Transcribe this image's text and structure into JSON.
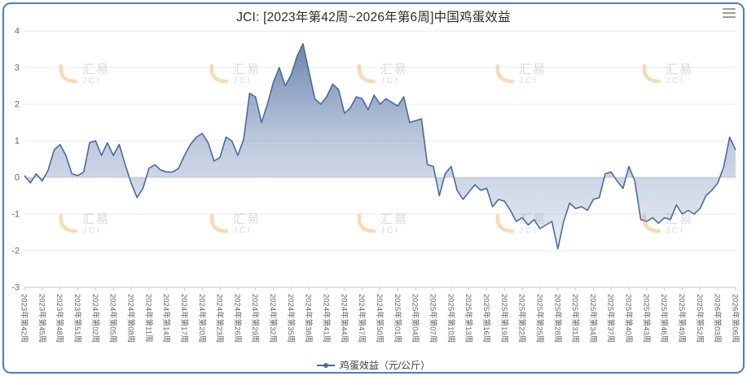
{
  "title": "JCI: [2023年第42周~2026年第6周]中国鸡蛋效益",
  "legend": {
    "series_label": "鸡蛋效益（元/公斤）"
  },
  "watermark": {
    "logo_text": "汇易",
    "sub_text": "JCI",
    "accent_color": "#f08c1e",
    "text_color": "#858b94"
  },
  "colors": {
    "line": "#4b6a9e",
    "border": "#4a7fc0",
    "grid": "#e6e8ec",
    "zero_line": "#cdd2d9",
    "axis_label": "#666666",
    "area_top": "#49699c",
    "area_bottom": "#dfe5ee"
  },
  "chart_data": {
    "type": "area",
    "title": "JCI: [2023年第42周~2026年第6周]中国鸡蛋效益",
    "ylabel": "",
    "xlabel": "",
    "ylim": [
      -3,
      4
    ],
    "y_ticks": [
      4,
      3,
      2,
      1,
      0,
      -1,
      -2,
      -3
    ],
    "grid": true,
    "legend_position": "bottom",
    "points_per_tick": 3,
    "x_tick_labels": [
      "2023年第42周",
      "2023年第45周",
      "2023年第48周",
      "2023年第51周",
      "2024年第02周",
      "2024年第05周",
      "2024年第08周",
      "2024年第11周",
      "2024年第14周",
      "2024年第17周",
      "2024年第20周",
      "2024年第23周",
      "2024年第26周",
      "2024年第29周",
      "2024年第32周",
      "2024年第35周",
      "2024年第38周",
      "2024年第41周",
      "2024年第44周",
      "2024年第47周",
      "2024年第50周",
      "2025年第01周",
      "2025年第04周",
      "2025年第07周",
      "2025年第10周",
      "2025年第13周",
      "2025年第16周",
      "2025年第19周",
      "2025年第22周",
      "2025年第25周",
      "2025年第28周",
      "2025年第31周",
      "2025年第34周",
      "2025年第37周",
      "2025年第40周",
      "2025年第43周",
      "2025年第46周",
      "2025年第49周",
      "2025年第52周",
      "2026年第03周",
      "2026年第06周"
    ],
    "series": [
      {
        "name": "鸡蛋效益（元/公斤）",
        "values": [
          0.05,
          -0.15,
          0.1,
          -0.1,
          0.2,
          0.75,
          0.9,
          0.6,
          0.1,
          0.05,
          0.15,
          0.95,
          1.0,
          0.6,
          0.95,
          0.6,
          0.9,
          0.35,
          -0.15,
          -0.55,
          -0.3,
          0.25,
          0.35,
          0.2,
          0.15,
          0.15,
          0.25,
          0.6,
          0.9,
          1.1,
          1.2,
          0.95,
          0.45,
          0.55,
          1.1,
          1.0,
          0.6,
          1.05,
          2.3,
          2.2,
          1.5,
          2.0,
          2.6,
          3.0,
          2.5,
          2.8,
          3.3,
          3.65,
          2.9,
          2.15,
          2.0,
          2.2,
          2.55,
          2.4,
          1.75,
          1.9,
          2.2,
          2.15,
          1.85,
          2.25,
          2.0,
          2.15,
          2.05,
          1.95,
          2.2,
          1.5,
          1.55,
          1.6,
          0.35,
          0.3,
          -0.5,
          0.1,
          0.3,
          -0.35,
          -0.6,
          -0.4,
          -0.2,
          -0.35,
          -0.3,
          -0.8,
          -0.6,
          -0.65,
          -0.9,
          -1.2,
          -1.1,
          -1.3,
          -1.15,
          -1.4,
          -1.3,
          -1.2,
          -1.95,
          -1.2,
          -0.7,
          -0.85,
          -0.8,
          -0.9,
          -0.6,
          -0.55,
          0.1,
          0.15,
          -0.1,
          -0.3,
          0.3,
          -0.1,
          -1.15,
          -1.2,
          -1.1,
          -1.25,
          -1.1,
          -1.15,
          -0.75,
          -1.0,
          -0.9,
          -1.0,
          -0.85,
          -0.5,
          -0.35,
          -0.15,
          0.3,
          1.1,
          0.75
        ]
      }
    ]
  }
}
